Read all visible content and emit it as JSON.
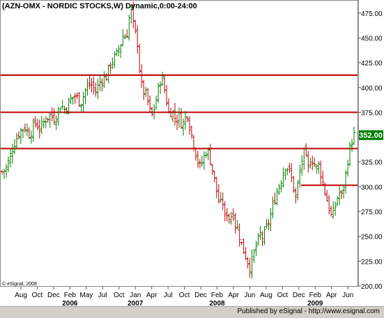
{
  "footer": {
    "text": "Published by eSignal - http://www.esignal.com"
  },
  "chart_data": {
    "type": "ohlc",
    "title": "(AZN-OMX - NORDIC STOCKS,W) Dynamic,0:00-24:00",
    "watermark": "© eSignal, 2008",
    "last_price_label": "352.00",
    "colors": {
      "background": "#ffffff",
      "up_bar": "#008000",
      "down_bar": "#c00000",
      "horizontal_line": "#c00000",
      "price_tag": "#008000",
      "grid": "#c8c8c8"
    },
    "ylim": [
      200,
      487.5
    ],
    "yticks": [
      "200.00",
      "225.00",
      "250.00",
      "275.00",
      "300.00",
      "325.00",
      "350.00",
      "375.00",
      "400.00",
      "425.00",
      "450.00",
      "475.00"
    ],
    "x_month_labels": [
      "Aug",
      "Oct",
      "Dec",
      "Feb",
      "May",
      "Jul",
      "Oct",
      "Jan",
      "Apr",
      "Jul",
      "Oct",
      "Dec",
      "Feb",
      "Apr",
      "Jun",
      "Aug",
      "Oct",
      "Dec",
      "Feb",
      "Apr",
      "Jun"
    ],
    "x_year_labels": [
      {
        "label": "2006",
        "under_index": 3
      },
      {
        "label": "2007",
        "under_index": 7
      },
      {
        "label": "2008",
        "under_index": 12
      },
      {
        "label": "2009",
        "under_index": 18
      }
    ],
    "horizontal_lines": [
      {
        "price": 412.5,
        "span": "full"
      },
      {
        "price": 375.0,
        "span": "full"
      },
      {
        "price": 338.5,
        "span": "full"
      },
      {
        "price": 301.5,
        "span": "partial"
      }
    ],
    "price_path": [
      [
        0,
        315
      ],
      [
        3,
        318
      ],
      [
        5,
        325
      ],
      [
        8,
        338
      ],
      [
        11,
        348
      ],
      [
        14,
        356
      ],
      [
        18,
        360
      ],
      [
        22,
        352
      ],
      [
        26,
        365
      ],
      [
        30,
        358
      ],
      [
        34,
        368
      ],
      [
        38,
        372
      ],
      [
        42,
        368
      ],
      [
        46,
        382
      ],
      [
        50,
        378
      ],
      [
        54,
        388
      ],
      [
        58,
        392
      ],
      [
        62,
        384
      ],
      [
        66,
        398
      ],
      [
        70,
        404
      ],
      [
        74,
        396
      ],
      [
        78,
        408
      ],
      [
        82,
        410
      ],
      [
        86,
        425
      ],
      [
        90,
        432
      ],
      [
        94,
        445
      ],
      [
        96,
        455
      ],
      [
        98,
        448
      ],
      [
        100,
        468
      ],
      [
        102,
        478
      ],
      [
        104,
        460
      ],
      [
        106,
        450
      ],
      [
        107,
        445
      ],
      [
        108,
        425
      ],
      [
        110,
        402
      ],
      [
        112,
        395
      ],
      [
        114,
        392
      ],
      [
        116,
        380
      ],
      [
        118,
        370
      ],
      [
        120,
        378
      ],
      [
        122,
        390
      ],
      [
        124,
        402
      ],
      [
        126,
        412
      ],
      [
        128,
        400
      ],
      [
        130,
        386
      ],
      [
        132,
        372
      ],
      [
        134,
        378
      ],
      [
        136,
        370
      ],
      [
        138,
        368
      ],
      [
        140,
        372
      ],
      [
        142,
        362
      ],
      [
        144,
        366
      ],
      [
        146,
        376
      ],
      [
        148,
        362
      ],
      [
        150,
        350
      ],
      [
        152,
        340
      ],
      [
        154,
        328
      ],
      [
        156,
        320
      ],
      [
        158,
        325
      ],
      [
        160,
        332
      ],
      [
        162,
        338
      ],
      [
        164,
        330
      ],
      [
        166,
        318
      ],
      [
        168,
        305
      ],
      [
        170,
        292
      ],
      [
        172,
        280
      ],
      [
        174,
        288
      ],
      [
        176,
        268
      ],
      [
        178,
        275
      ],
      [
        180,
        265
      ],
      [
        182,
        278
      ],
      [
        184,
        262
      ],
      [
        186,
        258
      ],
      [
        188,
        248
      ],
      [
        190,
        238
      ],
      [
        192,
        232
      ],
      [
        194,
        225
      ],
      [
        196,
        218
      ],
      [
        198,
        228
      ],
      [
        200,
        238
      ],
      [
        202,
        245
      ],
      [
        204,
        252
      ],
      [
        206,
        248
      ],
      [
        208,
        255
      ],
      [
        210,
        262
      ],
      [
        212,
        270
      ],
      [
        214,
        282
      ],
      [
        216,
        290
      ],
      [
        218,
        300
      ],
      [
        220,
        305
      ],
      [
        222,
        315
      ],
      [
        224,
        322
      ],
      [
        226,
        318
      ],
      [
        228,
        312
      ],
      [
        230,
        300
      ],
      [
        232,
        288
      ],
      [
        234,
        305
      ],
      [
        236,
        320
      ],
      [
        238,
        335
      ],
      [
        240,
        328
      ],
      [
        242,
        318
      ],
      [
        244,
        330
      ],
      [
        246,
        325
      ],
      [
        248,
        318
      ],
      [
        250,
        322
      ],
      [
        252,
        312
      ],
      [
        254,
        300
      ],
      [
        256,
        290
      ],
      [
        258,
        280
      ],
      [
        260,
        270
      ],
      [
        262,
        275
      ],
      [
        264,
        285
      ],
      [
        266,
        295
      ],
      [
        268,
        290
      ],
      [
        270,
        300
      ],
      [
        272,
        318
      ],
      [
        274,
        335
      ],
      [
        276,
        345
      ],
      [
        278,
        352
      ]
    ]
  }
}
